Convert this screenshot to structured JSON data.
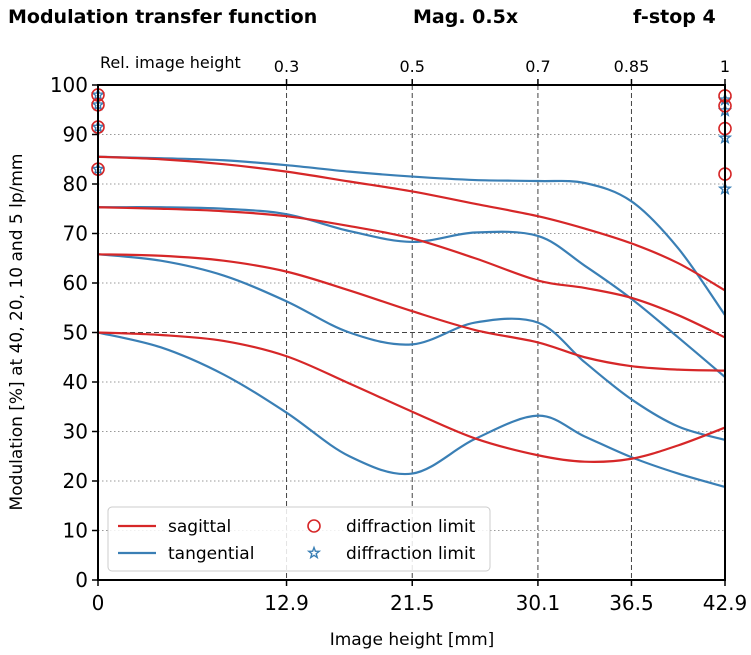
{
  "header": {
    "title": "Modulation transfer function",
    "magnification": "Mag. 0.5x",
    "fstop": "f-stop 4"
  },
  "chart_data": {
    "type": "line",
    "xlabel": "Image height [mm]",
    "ylabel": "Modulation [%] at 40, 20, 10 and 5 lp/mm",
    "xlim": [
      0,
      42.9
    ],
    "ylim": [
      0,
      100
    ],
    "x_ticks": [
      0,
      12.9,
      21.5,
      30.1,
      36.5,
      42.9
    ],
    "x_tick_labels": [
      "0",
      "12.9",
      "21.5",
      "30.1",
      "36.5",
      "42.9"
    ],
    "y_ticks": [
      0,
      10,
      20,
      30,
      40,
      50,
      60,
      70,
      80,
      90,
      100
    ],
    "top_axis": {
      "label": "Rel. image height",
      "ticks": [
        12.9,
        21.5,
        30.1,
        36.5,
        42.9
      ],
      "tick_labels": [
        "0.3",
        "0.5",
        "0.7",
        "0.85",
        "1"
      ]
    },
    "grid": {
      "vertical_dashed_at": [
        12.9,
        21.5,
        30.1,
        36.5
      ],
      "horizontal_dotted": true,
      "horizontal_dashed_at": 50
    },
    "legend": {
      "position": "bottom-left",
      "entries": [
        {
          "label": "sagittal",
          "marker": "line",
          "color": "#d62728"
        },
        {
          "label": "tangential",
          "marker": "line",
          "color": "#3a7fb5"
        },
        {
          "label": "diffraction limit",
          "marker": "circle",
          "color": "#d62728"
        },
        {
          "label": "diffraction limit",
          "marker": "star",
          "color": "#3a7fb5"
        }
      ]
    },
    "colors": {
      "sagittal": "#d62728",
      "tangential": "#3a7fb5"
    },
    "x": [
      0,
      4.3,
      8.6,
      12.9,
      17.2,
      21.5,
      25.8,
      30.1,
      33.3,
      36.5,
      39.7,
      42.9
    ],
    "series": [
      {
        "name": "sagittal",
        "values": [
          85.5,
          85.0,
          84.0,
          82.5,
          80.5,
          78.5,
          76.0,
          73.5,
          71.0,
          68.0,
          64.0,
          58.5
        ]
      },
      {
        "name": "sagittal",
        "values": [
          75.3,
          75.0,
          74.5,
          73.5,
          71.5,
          69.0,
          65.0,
          60.5,
          59.0,
          57.0,
          53.5,
          49.0
        ]
      },
      {
        "name": "sagittal",
        "values": [
          65.8,
          65.5,
          64.5,
          62.3,
          58.5,
          54.3,
          50.5,
          48.0,
          45.0,
          43.2,
          42.5,
          42.3
        ]
      },
      {
        "name": "sagittal",
        "values": [
          50.0,
          49.5,
          48.3,
          45.2,
          39.7,
          34.0,
          28.6,
          25.2,
          23.9,
          24.5,
          27.2,
          30.8
        ]
      },
      {
        "name": "tangential",
        "values": [
          85.5,
          85.2,
          84.8,
          83.8,
          82.5,
          81.5,
          80.8,
          80.6,
          80.2,
          76.5,
          67.0,
          53.5
        ]
      },
      {
        "name": "tangential",
        "values": [
          75.3,
          75.3,
          75.0,
          73.9,
          70.5,
          68.3,
          70.2,
          69.5,
          63.5,
          56.8,
          49.0,
          41.0
        ]
      },
      {
        "name": "tangential",
        "values": [
          65.8,
          64.5,
          61.5,
          56.3,
          50.0,
          47.6,
          52.0,
          52.0,
          44.0,
          36.5,
          31.0,
          28.3
        ]
      },
      {
        "name": "tangential",
        "values": [
          50.0,
          47.0,
          41.5,
          33.8,
          25.0,
          21.5,
          28.5,
          33.2,
          29.0,
          24.8,
          21.5,
          18.8
        ]
      }
    ],
    "diffraction_limits": {
      "sagittal_x0": [
        98.0,
        96.0,
        91.5,
        83.0
      ],
      "tangential_x0": [
        98.0,
        96.0,
        91.5,
        83.0
      ],
      "sagittal_xmax": [
        97.8,
        95.8,
        91.2,
        82.0
      ],
      "tangential_xmax": [
        97.0,
        94.8,
        89.3,
        79.0
      ]
    }
  }
}
